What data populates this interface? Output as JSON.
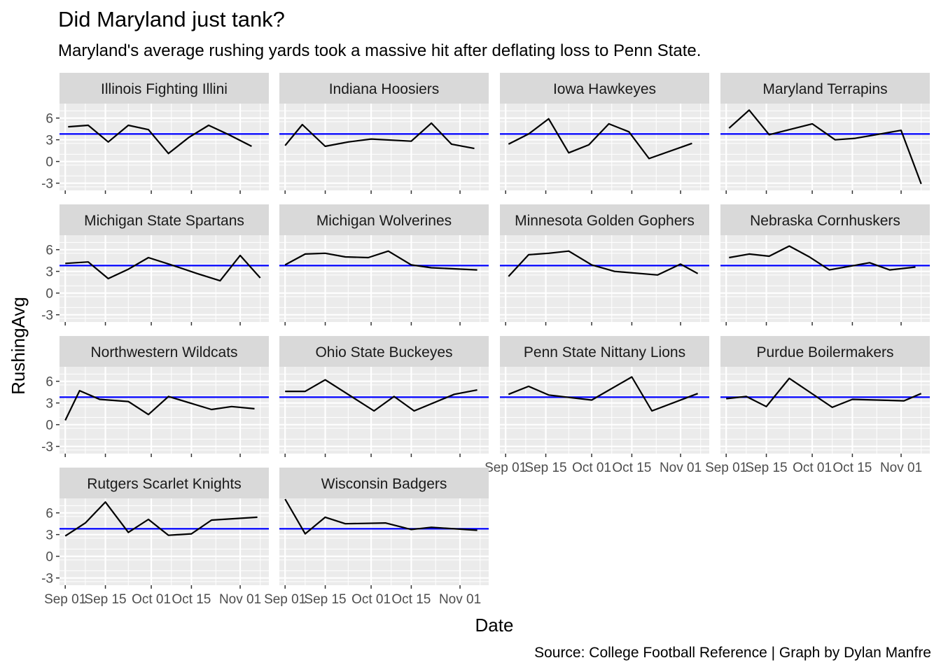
{
  "title": "Did Maryland just tank?",
  "subtitle": "Maryland's average rushing yards took a massive hit after deflating loss to Penn State.",
  "caption": "Source: College Football Reference | Graph by Dylan Manfre",
  "colors": {
    "panel_background": "#EBEBEB",
    "gridline": "#FFFFFF",
    "strip_background": "#D9D9D9",
    "reference_line": "#0000FF",
    "series_line": "#000000",
    "tick_text": "#4D4D4D"
  },
  "chart_data": {
    "type": "line",
    "facet": "team",
    "facet_layout": "4 columns x 4 rows, facet_wrap",
    "xlabel": "Date",
    "ylabel": "RushingAvg",
    "ylim": [
      -4,
      8
    ],
    "y_ticks": [
      -3,
      0,
      3,
      6
    ],
    "xlim": [
      "2020-08-30",
      "2020-11-11"
    ],
    "x_ticks": [
      "2020-09-01",
      "2020-09-15",
      "2020-10-01",
      "2020-10-15",
      "2020-11-01"
    ],
    "x_tick_labels": [
      "Sep 01",
      "Sep 15",
      "Oct 01",
      "Oct 15",
      "Nov 01"
    ],
    "grid": true,
    "reference_line": {
      "y": 3.8,
      "color": "#0000FF"
    },
    "panels": [
      {
        "name": "Illinois Fighting Illini",
        "x": [
          "2020-09-02",
          "2020-09-09",
          "2020-09-16",
          "2020-09-23",
          "2020-09-30",
          "2020-10-07",
          "2020-10-14",
          "2020-10-21",
          "2020-10-28",
          "2020-11-05"
        ],
        "y": [
          4.8,
          5.0,
          2.7,
          5.0,
          4.4,
          1.1,
          3.3,
          5.0,
          3.7,
          2.1
        ]
      },
      {
        "name": "Indiana Hoosiers",
        "x": [
          "2020-09-01",
          "2020-09-07",
          "2020-09-15",
          "2020-09-23",
          "2020-10-01",
          "2020-10-15",
          "2020-10-22",
          "2020-10-29",
          "2020-11-06"
        ],
        "y": [
          2.2,
          5.1,
          2.1,
          2.7,
          3.1,
          2.8,
          5.3,
          2.4,
          1.8
        ]
      },
      {
        "name": "Iowa Hawkeyes",
        "x": [
          "2020-09-02",
          "2020-09-09",
          "2020-09-16",
          "2020-09-23",
          "2020-09-30",
          "2020-10-07",
          "2020-10-14",
          "2020-10-21",
          "2020-11-05"
        ],
        "y": [
          2.4,
          3.8,
          5.9,
          1.2,
          2.3,
          5.2,
          4.1,
          0.4,
          2.5
        ]
      },
      {
        "name": "Maryland Terrapins",
        "x": [
          "2020-09-02",
          "2020-09-09",
          "2020-09-16",
          "2020-10-01",
          "2020-10-09",
          "2020-10-16",
          "2020-11-01",
          "2020-11-08"
        ],
        "y": [
          4.6,
          7.1,
          3.7,
          5.2,
          3.0,
          3.2,
          4.3,
          -3.1
        ]
      },
      {
        "name": "Michigan State Spartans",
        "x": [
          "2020-09-01",
          "2020-09-09",
          "2020-09-16",
          "2020-09-23",
          "2020-09-30",
          "2020-10-08",
          "2020-10-17",
          "2020-10-25",
          "2020-11-01",
          "2020-11-08"
        ],
        "y": [
          4.1,
          4.3,
          2.0,
          3.3,
          4.9,
          3.9,
          2.7,
          1.7,
          5.2,
          2.1
        ]
      },
      {
        "name": "Michigan Wolverines",
        "x": [
          "2020-09-01",
          "2020-09-08",
          "2020-09-15",
          "2020-09-22",
          "2020-09-30",
          "2020-10-07",
          "2020-10-15",
          "2020-10-22",
          "2020-11-07"
        ],
        "y": [
          3.9,
          5.4,
          5.5,
          5.0,
          4.9,
          5.8,
          3.9,
          3.5,
          3.2
        ]
      },
      {
        "name": "Minnesota Golden Gophers",
        "x": [
          "2020-09-02",
          "2020-09-09",
          "2020-09-16",
          "2020-09-23",
          "2020-10-01",
          "2020-10-09",
          "2020-10-24",
          "2020-11-01",
          "2020-11-07"
        ],
        "y": [
          2.3,
          5.3,
          5.5,
          5.8,
          3.9,
          3.0,
          2.5,
          4.0,
          2.7
        ]
      },
      {
        "name": "Nebraska Cornhuskers",
        "x": [
          "2020-09-02",
          "2020-09-09",
          "2020-09-16",
          "2020-09-23",
          "2020-09-30",
          "2020-10-07",
          "2020-10-14",
          "2020-10-21",
          "2020-10-28",
          "2020-11-06"
        ],
        "y": [
          4.9,
          5.4,
          5.1,
          6.5,
          5.0,
          3.2,
          3.7,
          4.2,
          3.2,
          3.6
        ]
      },
      {
        "name": "Northwestern Wildcats",
        "x": [
          "2020-09-01",
          "2020-09-06",
          "2020-09-13",
          "2020-09-23",
          "2020-09-30",
          "2020-10-07",
          "2020-10-22",
          "2020-10-29",
          "2020-11-06"
        ],
        "y": [
          0.6,
          4.7,
          3.5,
          3.2,
          1.4,
          3.9,
          2.1,
          2.5,
          2.2
        ]
      },
      {
        "name": "Ohio State Buckeyes",
        "x": [
          "2020-09-01",
          "2020-09-08",
          "2020-09-15",
          "2020-10-02",
          "2020-10-09",
          "2020-10-16",
          "2020-10-30",
          "2020-11-07"
        ],
        "y": [
          4.6,
          4.6,
          6.2,
          1.9,
          3.9,
          1.9,
          4.2,
          4.8
        ]
      },
      {
        "name": "Penn State Nittany Lions",
        "x": [
          "2020-09-02",
          "2020-09-09",
          "2020-09-16",
          "2020-10-01",
          "2020-10-15",
          "2020-10-22",
          "2020-11-07"
        ],
        "y": [
          4.2,
          5.3,
          4.1,
          3.4,
          6.6,
          1.9,
          4.3
        ]
      },
      {
        "name": "Purdue Boilermakers",
        "x": [
          "2020-09-01",
          "2020-09-08",
          "2020-09-15",
          "2020-09-23",
          "2020-10-08",
          "2020-10-15",
          "2020-11-02",
          "2020-11-08"
        ],
        "y": [
          3.6,
          3.9,
          2.5,
          6.4,
          2.4,
          3.5,
          3.3,
          4.3
        ]
      },
      {
        "name": "Rutgers Scarlet Knights",
        "x": [
          "2020-09-01",
          "2020-09-08",
          "2020-09-15",
          "2020-09-23",
          "2020-09-30",
          "2020-10-07",
          "2020-10-15",
          "2020-10-22",
          "2020-11-07"
        ],
        "y": [
          2.8,
          4.6,
          7.5,
          3.3,
          5.1,
          2.9,
          3.1,
          5.0,
          5.4
        ]
      },
      {
        "name": "Wisconsin Badgers",
        "x": [
          "2020-09-01",
          "2020-09-08",
          "2020-09-15",
          "2020-09-22",
          "2020-10-06",
          "2020-10-15",
          "2020-10-22",
          "2020-11-07"
        ],
        "y": [
          7.9,
          3.1,
          5.4,
          4.5,
          4.6,
          3.7,
          4.0,
          3.6
        ]
      }
    ]
  }
}
